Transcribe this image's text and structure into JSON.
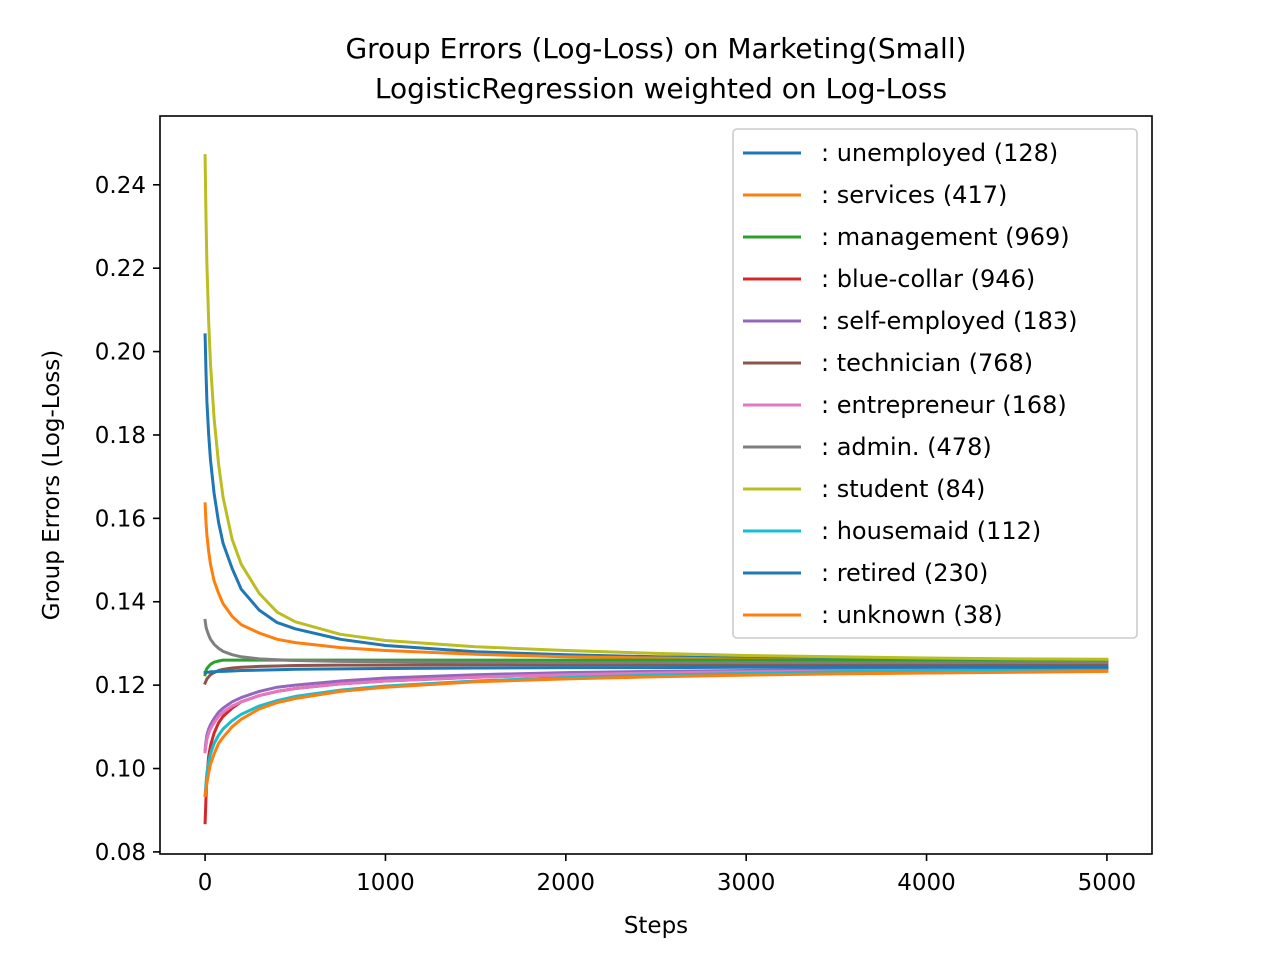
{
  "chart_data": {
    "type": "line",
    "title": "Group Errors (Log-Loss) on Marketing(Small)",
    "subtitle": "LogisticRegression weighted on Log-Loss",
    "xlabel": "Steps",
    "ylabel": "Group Errors (Log-Loss)",
    "xlim": [
      -250,
      5250
    ],
    "ylim": [
      0.0795,
      0.2565
    ],
    "xticks": [
      0,
      1000,
      2000,
      3000,
      4000,
      5000
    ],
    "yticks": [
      0.08,
      0.1,
      0.12,
      0.14,
      0.16,
      0.18,
      0.2,
      0.22,
      0.24
    ],
    "ytick_labels": [
      "0.08",
      "0.10",
      "0.12",
      "0.14",
      "0.16",
      "0.18",
      "0.20",
      "0.22",
      "0.24"
    ],
    "grid": false,
    "legend_position": "top-right",
    "x": [
      0,
      5,
      10,
      20,
      30,
      50,
      75,
      100,
      150,
      200,
      300,
      400,
      500,
      750,
      1000,
      1500,
      2000,
      2500,
      3000,
      3500,
      4000,
      4500,
      5000
    ],
    "series": [
      {
        "name": ": unemployed  (128)",
        "color": "#1f77b4",
        "values": [
          0.204,
          0.195,
          0.188,
          0.18,
          0.174,
          0.166,
          0.159,
          0.154,
          0.148,
          0.143,
          0.138,
          0.135,
          0.1335,
          0.131,
          0.1295,
          0.128,
          0.1273,
          0.1268,
          0.1265,
          0.1263,
          0.1261,
          0.1259,
          0.1258
        ]
      },
      {
        "name": ": services  (417)",
        "color": "#ff7f0e",
        "values": [
          0.1635,
          0.159,
          0.156,
          0.152,
          0.149,
          0.145,
          0.142,
          0.1395,
          0.1365,
          0.1345,
          0.1325,
          0.131,
          0.1302,
          0.129,
          0.1283,
          0.1274,
          0.1268,
          0.1265,
          0.1262,
          0.126,
          0.1259,
          0.1258,
          0.1257
        ]
      },
      {
        "name": ": management  (969)",
        "color": "#2ca02c",
        "values": [
          0.1225,
          0.1235,
          0.124,
          0.1245,
          0.125,
          0.1255,
          0.1258,
          0.126,
          0.126,
          0.126,
          0.126,
          0.126,
          0.126,
          0.126,
          0.126,
          0.126,
          0.126,
          0.126,
          0.126,
          0.126,
          0.126,
          0.126,
          0.126
        ]
      },
      {
        "name": ": blue-collar  (946)",
        "color": "#d62728",
        "values": [
          0.087,
          0.093,
          0.098,
          0.103,
          0.1055,
          0.1085,
          0.111,
          0.1125,
          0.1145,
          0.116,
          0.1175,
          0.1185,
          0.1192,
          0.1203,
          0.121,
          0.1219,
          0.1225,
          0.1229,
          0.1232,
          0.1234,
          0.1236,
          0.1238,
          0.1239
        ]
      },
      {
        "name": ": self-employed  (183)",
        "color": "#9467bd",
        "values": [
          0.1045,
          0.1065,
          0.108,
          0.1095,
          0.1105,
          0.112,
          0.1135,
          0.1145,
          0.116,
          0.117,
          0.1185,
          0.1195,
          0.12,
          0.121,
          0.1217,
          0.1225,
          0.123,
          0.1233,
          0.1235,
          0.1237,
          0.1239,
          0.124,
          0.1241
        ]
      },
      {
        "name": ": technician  (768)",
        "color": "#8c564b",
        "values": [
          0.1205,
          0.121,
          0.1215,
          0.122,
          0.1225,
          0.123,
          0.1235,
          0.1238,
          0.1241,
          0.1243,
          0.1245,
          0.1246,
          0.1247,
          0.1248,
          0.1248,
          0.1249,
          0.1249,
          0.1249,
          0.1249,
          0.1249,
          0.1249,
          0.1249,
          0.1249
        ]
      },
      {
        "name": ": entrepreneur  (168)",
        "color": "#e377c2",
        "values": [
          0.104,
          0.1055,
          0.107,
          0.1085,
          0.1095,
          0.111,
          0.1125,
          0.1135,
          0.115,
          0.116,
          0.1175,
          0.1185,
          0.1192,
          0.1203,
          0.121,
          0.1219,
          0.1225,
          0.1229,
          0.1232,
          0.1234,
          0.1236,
          0.1238,
          0.1239
        ]
      },
      {
        "name": ": admin.  (478)",
        "color": "#7f7f7f",
        "values": [
          0.1355,
          0.134,
          0.1332,
          0.132,
          0.131,
          0.1298,
          0.1288,
          0.1281,
          0.1273,
          0.1268,
          0.1263,
          0.1261,
          0.1259,
          0.1257,
          0.1256,
          0.1255,
          0.1254,
          0.1254,
          0.1254,
          0.1254,
          0.1254,
          0.1254,
          0.1254
        ]
      },
      {
        "name": ": student  (84)",
        "color": "#bcbd22",
        "values": [
          0.247,
          0.232,
          0.221,
          0.207,
          0.197,
          0.184,
          0.173,
          0.165,
          0.155,
          0.149,
          0.142,
          0.1375,
          0.1352,
          0.1322,
          0.1307,
          0.1292,
          0.1283,
          0.1276,
          0.1271,
          0.1268,
          0.1265,
          0.1263,
          0.1262
        ]
      },
      {
        "name": ": housemaid  (112)",
        "color": "#17becf",
        "values": [
          0.0935,
          0.0965,
          0.099,
          0.1015,
          0.1035,
          0.106,
          0.108,
          0.1095,
          0.1115,
          0.113,
          0.115,
          0.1163,
          0.1173,
          0.1188,
          0.1198,
          0.121,
          0.1218,
          0.1224,
          0.1228,
          0.1232,
          0.1235,
          0.1237,
          0.1239
        ]
      },
      {
        "name": ": retired  (230)",
        "color": "#1f77b4",
        "values": [
          0.123,
          0.123,
          0.1231,
          0.1231,
          0.1232,
          0.1232,
          0.1233,
          0.1233,
          0.1234,
          0.1235,
          0.1236,
          0.1237,
          0.1238,
          0.1239,
          0.124,
          0.1241,
          0.1242,
          0.1242,
          0.1243,
          0.1243,
          0.1243,
          0.1243,
          0.1243
        ]
      },
      {
        "name": ": unknown  (38)",
        "color": "#ff7f0e",
        "values": [
          0.0935,
          0.095,
          0.0965,
          0.099,
          0.101,
          0.1035,
          0.106,
          0.1075,
          0.11,
          0.1118,
          0.1143,
          0.1158,
          0.1168,
          0.1185,
          0.1195,
          0.1208,
          0.1215,
          0.122,
          0.1224,
          0.1227,
          0.1229,
          0.1231,
          0.1233
        ]
      }
    ]
  }
}
